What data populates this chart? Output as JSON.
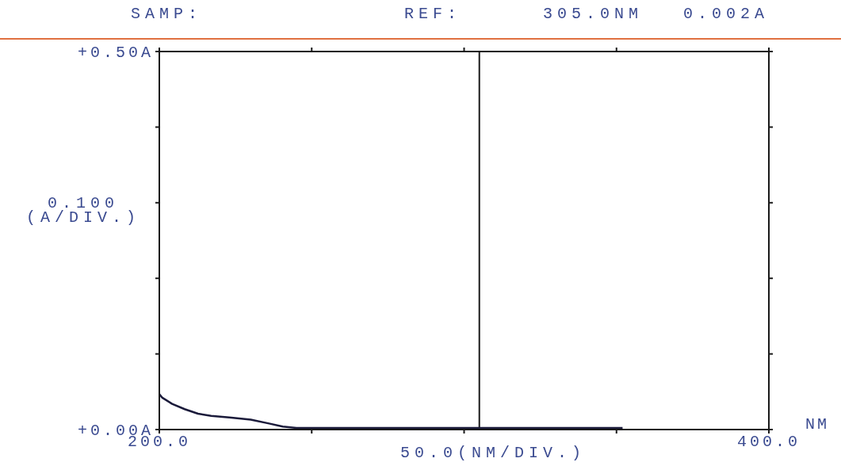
{
  "chart_data": {
    "type": "line",
    "xlabel": "NM",
    "ylabel": "0.100 (A/DIV.)",
    "annotations": [
      "SAMP:",
      "REF:",
      "305.0NM",
      "0.002A",
      "50.0(NM/DIV.)"
    ],
    "x": [
      200,
      201,
      204.2,
      208.3,
      212.7,
      217,
      223,
      230,
      236,
      240.5,
      245,
      260,
      280,
      300,
      320,
      340,
      352
    ],
    "series": [
      {
        "color": "#1a1a3a",
        "values": [
          0.047,
          0.042,
          0.034,
          0.027,
          0.021,
          0.018,
          0.016,
          0.013,
          0.008,
          0.004,
          0.002,
          0.002,
          0.002,
          0.002,
          0.002,
          0.002,
          0.002
        ]
      }
    ],
    "xlim": [
      200,
      400
    ],
    "xticks": [
      {
        "value": 200,
        "label": "200.0"
      },
      {
        "value": 250,
        "label": null
      },
      {
        "value": 300,
        "label": null
      },
      {
        "value": 350,
        "label": null
      },
      {
        "value": 400,
        "label": "400.0"
      }
    ],
    "ylim": [
      0,
      0.5
    ],
    "yticks": [
      {
        "value": 0,
        "label": "+0.00A"
      },
      {
        "value": 0.1,
        "label": null
      },
      {
        "value": 0.2,
        "label": null
      },
      {
        "value": 0.3,
        "label": null
      },
      {
        "value": 0.4,
        "label": null
      },
      {
        "value": 0.5,
        "label": "+0.50A"
      }
    ],
    "ref_lines": [
      {
        "axis": "x",
        "value": 305,
        "color": "#1a1a1a"
      }
    ],
    "grid": false,
    "legend": false,
    "marker": "none",
    "line_style": "solid"
  }
}
